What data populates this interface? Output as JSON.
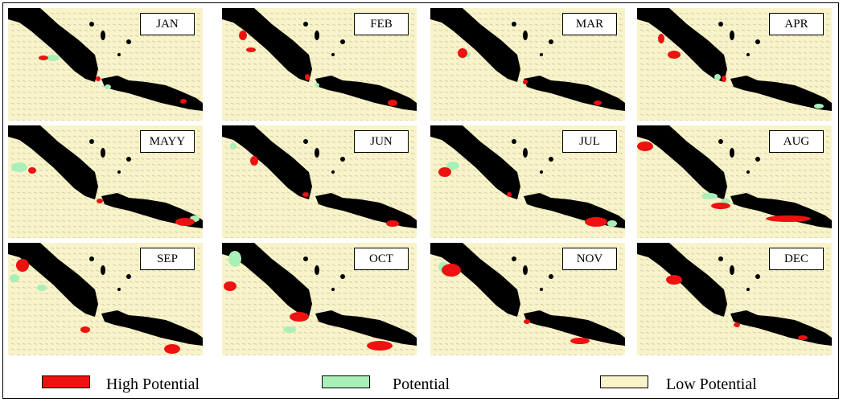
{
  "panels": [
    {
      "month": "JAN"
    },
    {
      "month": "FEB"
    },
    {
      "month": "MAR"
    },
    {
      "month": "APR"
    },
    {
      "month": "MAYY"
    },
    {
      "month": "JUN"
    },
    {
      "month": "JUL"
    },
    {
      "month": "AUG"
    },
    {
      "month": "SEP"
    },
    {
      "month": "OCT"
    },
    {
      "month": "NOV"
    },
    {
      "month": "DEC"
    }
  ],
  "legend": {
    "high": {
      "label": "High Potential",
      "color": "#ee1111"
    },
    "potential": {
      "label": "Potential",
      "color": "#a8f0b8"
    },
    "low": {
      "label": "Low Potential",
      "color": "#f8f3c8"
    }
  },
  "colors": {
    "land": "#000000",
    "sea": "#f8f3c8",
    "vector": "#c9c6a6"
  }
}
